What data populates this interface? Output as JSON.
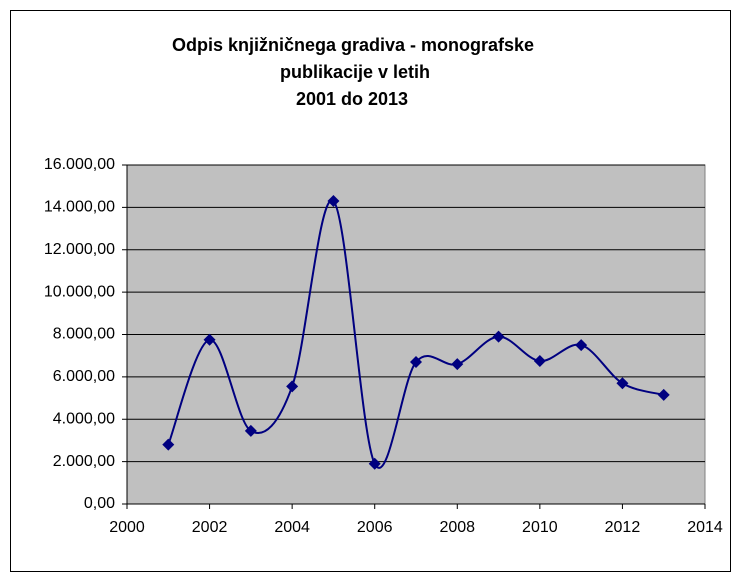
{
  "chart_data": {
    "type": "line",
    "title": [
      "Odpis knjižničnega gradiva - monografske",
      "publikacije  v letih",
      "2001 do 2013"
    ],
    "x": [
      2001,
      2002,
      2003,
      2004,
      2005,
      2006,
      2007,
      2008,
      2009,
      2010,
      2011,
      2012,
      2013
    ],
    "series": [
      {
        "color": "#000080",
        "values": [
          2800,
          7750,
          3450,
          5550,
          14300,
          1900,
          6700,
          6600,
          7900,
          6750,
          7500,
          5700,
          5150
        ]
      }
    ],
    "xlim": [
      2000,
      2014
    ],
    "xticks": [
      2000,
      2002,
      2004,
      2006,
      2008,
      2010,
      2012,
      2014
    ],
    "ylim": [
      0,
      16000
    ],
    "yticks": [
      {
        "value": 0,
        "label": "0,00"
      },
      {
        "value": 2000,
        "label": "2.000,00"
      },
      {
        "value": 4000,
        "label": "4.000,00"
      },
      {
        "value": 6000,
        "label": "6.000,00"
      },
      {
        "value": 8000,
        "label": "8.000,00"
      },
      {
        "value": 10000,
        "label": "10.000,00"
      },
      {
        "value": 12000,
        "label": "12.000,00"
      },
      {
        "value": 14000,
        "label": "14.000,00"
      },
      {
        "value": 16000,
        "label": "16.000,00"
      }
    ],
    "grid": true,
    "smooth": true
  }
}
